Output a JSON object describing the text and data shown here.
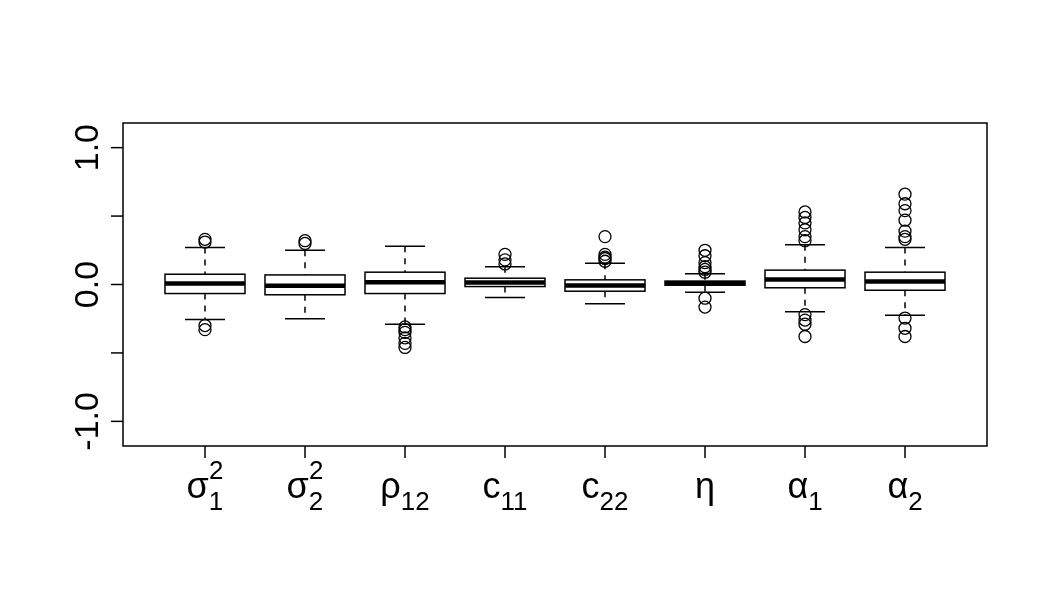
{
  "chart_data": {
    "type": "box",
    "categories": [
      "σ$_{1}$$^{2}$",
      "σ$_{2}$$^{2}$",
      "ρ$_{12}$",
      "c$_{11}$",
      "c$_{22}$",
      "η",
      "α$_{1}$",
      "α$_{2}$"
    ],
    "boxes": [
      {
        "low": -0.255,
        "q1": -0.066,
        "median": 0.007,
        "q3": 0.075,
        "high": 0.27,
        "outliers": [
          0.33,
          0.31,
          -0.3,
          -0.33
        ]
      },
      {
        "low": -0.25,
        "q1": -0.075,
        "median": -0.01,
        "q3": 0.07,
        "high": 0.25,
        "outliers": [
          0.32,
          0.3
        ]
      },
      {
        "low": -0.29,
        "q1": -0.066,
        "median": 0.017,
        "q3": 0.09,
        "high": 0.28,
        "outliers": [
          -0.31,
          -0.33,
          -0.35,
          -0.39,
          -0.43,
          -0.46
        ]
      },
      {
        "low": -0.095,
        "q1": -0.015,
        "median": 0.015,
        "q3": 0.046,
        "high": 0.13,
        "outliers": [
          0.22,
          0.18,
          0.15
        ]
      },
      {
        "low": -0.14,
        "q1": -0.049,
        "median": -0.007,
        "q3": 0.034,
        "high": 0.155,
        "outliers": [
          0.35,
          0.22,
          0.2,
          0.19,
          0.17
        ]
      },
      {
        "low": -0.056,
        "q1": -0.005,
        "median": 0.01,
        "q3": 0.025,
        "high": 0.078,
        "outliers": [
          0.25,
          0.21,
          0.16,
          0.13,
          0.11,
          0.09,
          -0.1,
          -0.165
        ]
      },
      {
        "low": -0.2,
        "q1": -0.024,
        "median": 0.036,
        "q3": 0.105,
        "high": 0.29,
        "outliers": [
          0.53,
          0.49,
          0.45,
          0.4,
          0.35,
          0.32,
          -0.22,
          -0.26,
          -0.29,
          -0.38
        ]
      },
      {
        "low": -0.224,
        "q1": -0.042,
        "median": 0.022,
        "q3": 0.09,
        "high": 0.27,
        "outliers": [
          0.66,
          0.59,
          0.54,
          0.47,
          0.39,
          0.35,
          0.33,
          -0.245,
          -0.32,
          -0.38
        ]
      }
    ],
    "ylim": [
      -1.18,
      1.18
    ],
    "yticks": [
      {
        "value": -1,
        "label": "-1.0"
      },
      {
        "value": -0.5,
        "label": null
      },
      {
        "value": 0,
        "label": "0.0"
      },
      {
        "value": 0.5,
        "label": null
      },
      {
        "value": 1,
        "label": "1.0"
      }
    ]
  }
}
